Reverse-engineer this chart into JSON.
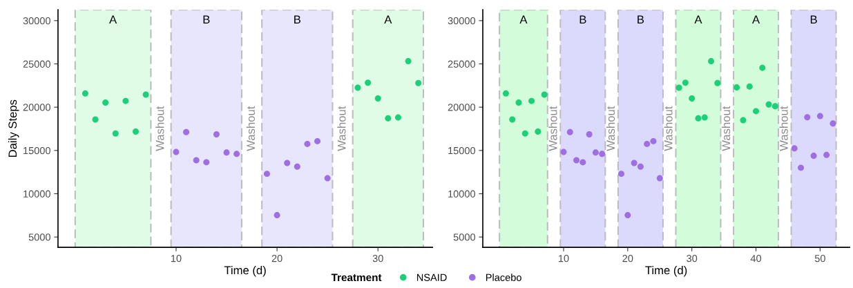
{
  "chart_data": [
    {
      "type": "scatter",
      "xlabel": "Time (d)",
      "ylabel": "Daily Steps",
      "legend_title": "Treatment",
      "legend": "bottom",
      "marker": "circle",
      "grid": false,
      "xlim": [
        -1.7,
        35.4
      ],
      "ylim": [
        3800,
        31250
      ],
      "xticks": [
        10,
        20,
        30
      ],
      "yticks": [
        5000,
        10000,
        15000,
        20000,
        25000,
        30000
      ],
      "series": [
        {
          "name": "NSAID",
          "color": "#1ccf78",
          "x": [
            1,
            2,
            3,
            4,
            5,
            6,
            7,
            28,
            29,
            30,
            31,
            32,
            33,
            34
          ],
          "values": [
            21580,
            18580,
            20530,
            16960,
            20720,
            17180,
            21450,
            22250,
            22830,
            21010,
            18710,
            18810,
            25310,
            22790
          ]
        },
        {
          "name": "Placebo",
          "color": "#9f6ee3",
          "x": [
            10,
            11,
            12,
            13,
            14,
            15,
            16,
            19,
            20,
            21,
            22,
            23,
            24,
            25
          ],
          "values": [
            14820,
            17120,
            13870,
            13640,
            16860,
            14760,
            14600,
            12300,
            7520,
            13550,
            13130,
            15750,
            16070,
            11790
          ]
        }
      ],
      "bands": [
        {
          "axis": "x",
          "from": 0,
          "to": 7.5,
          "label": "A",
          "color": "#e0fce6"
        },
        {
          "axis": "x",
          "from": 9.5,
          "to": 16.5,
          "label": "B",
          "color": "#e8e6fd"
        },
        {
          "axis": "x",
          "from": 18.5,
          "to": 25.5,
          "label": "B",
          "color": "#e8e6fd"
        },
        {
          "axis": "x",
          "from": 27.5,
          "to": 34.5,
          "label": "A",
          "color": "#e0fce6"
        }
      ],
      "annotations": [
        "Washout",
        "Washout",
        "Washout"
      ]
    },
    {
      "type": "scatter",
      "xlabel": "Time (d)",
      "legend": false,
      "marker": "circle",
      "grid": false,
      "xlim": [
        -2.6,
        54.6
      ],
      "ylim": [
        3800,
        31250
      ],
      "xticks": [
        10,
        20,
        30,
        40,
        50
      ],
      "yticks": [
        5000,
        10000,
        15000,
        20000,
        25000,
        30000
      ],
      "series": [
        {
          "color": "#1ccf78",
          "x": [
            1,
            2,
            3,
            4,
            5,
            6,
            7,
            28,
            29,
            30,
            31,
            32,
            33,
            34,
            37,
            38,
            39,
            40,
            41,
            42,
            43
          ],
          "values": [
            21580,
            18580,
            20530,
            16960,
            20720,
            17180,
            21450,
            22250,
            22830,
            21010,
            18710,
            18810,
            25310,
            22790,
            22280,
            18490,
            22380,
            19540,
            24550,
            20310,
            20110
          ]
        },
        {
          "color": "#9f6ee3",
          "x": [
            10,
            11,
            12,
            13,
            14,
            15,
            16,
            19,
            20,
            21,
            22,
            23,
            24,
            25,
            46,
            47,
            48,
            49,
            50,
            51,
            52
          ],
          "values": [
            14820,
            17120,
            13870,
            13640,
            16860,
            14760,
            14600,
            12300,
            7520,
            13550,
            13130,
            15750,
            16070,
            11790,
            15240,
            13000,
            18840,
            14380,
            18970,
            14480,
            18110
          ]
        }
      ],
      "bands": [
        {
          "axis": "x",
          "from": 0,
          "to": 7.5,
          "label": "A",
          "color": "#d3fcda"
        },
        {
          "axis": "x",
          "from": 9.5,
          "to": 16.5,
          "label": "B",
          "color": "#dcdafc"
        },
        {
          "axis": "x",
          "from": 18.5,
          "to": 25.5,
          "label": "B",
          "color": "#dcdafc"
        },
        {
          "axis": "x",
          "from": 27.5,
          "to": 34.5,
          "label": "A",
          "color": "#d3fcda"
        },
        {
          "axis": "x",
          "from": 36.5,
          "to": 43.5,
          "label": "A",
          "color": "#d3fcda"
        },
        {
          "axis": "x",
          "from": 45.5,
          "to": 52.5,
          "label": "B",
          "color": "#dcdafc"
        }
      ],
      "annotations": [
        "Washout",
        "Washout",
        "Washout",
        "Washout",
        "Washout"
      ]
    }
  ]
}
